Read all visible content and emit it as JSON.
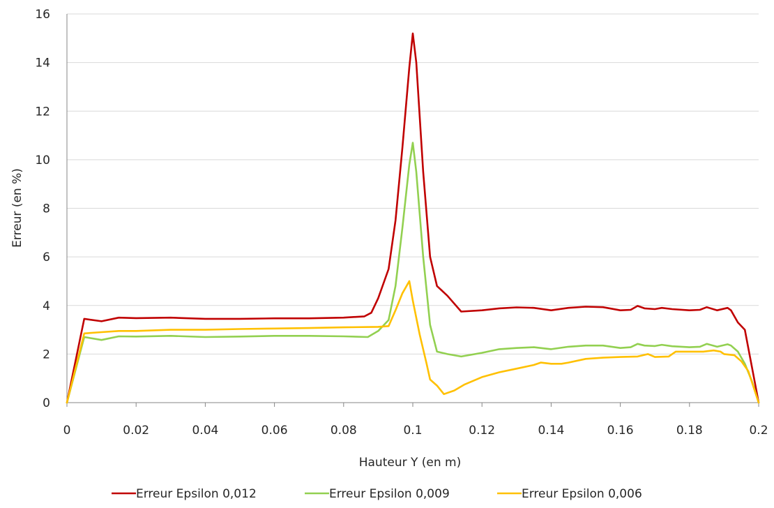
{
  "chart_data": {
    "type": "line",
    "title": "",
    "xlabel": "Hauteur Y (en m)",
    "ylabel": "Erreur (en %)",
    "xlim": [
      0,
      0.2
    ],
    "ylim": [
      0,
      16
    ],
    "grid": "horizontal",
    "legend_position": "bottom",
    "x_ticks": [
      0,
      0.02,
      0.04,
      0.06,
      0.08,
      0.1,
      0.12,
      0.14,
      0.16,
      0.18,
      0.2
    ],
    "x_tick_labels": [
      "0",
      "0.02",
      "0.04",
      "0.06",
      "0.08",
      "0.1",
      "0.12",
      "0.14",
      "0.16",
      "0.18",
      "0.2"
    ],
    "y_ticks": [
      0,
      2,
      4,
      6,
      8,
      10,
      12,
      14,
      16
    ],
    "y_tick_labels": [
      "0",
      "2",
      "4",
      "6",
      "8",
      "10",
      "12",
      "14",
      "16"
    ],
    "series": [
      {
        "name": "Erreur Epsilon 0,012",
        "color": "#c00000",
        "points": [
          [
            0,
            0
          ],
          [
            0.005,
            3.45
          ],
          [
            0.01,
            3.35
          ],
          [
            0.015,
            3.5
          ],
          [
            0.02,
            3.48
          ],
          [
            0.03,
            3.5
          ],
          [
            0.04,
            3.45
          ],
          [
            0.05,
            3.45
          ],
          [
            0.06,
            3.47
          ],
          [
            0.07,
            3.47
          ],
          [
            0.08,
            3.5
          ],
          [
            0.086,
            3.55
          ],
          [
            0.088,
            3.7
          ],
          [
            0.09,
            4.3
          ],
          [
            0.093,
            5.5
          ],
          [
            0.095,
            7.5
          ],
          [
            0.097,
            10.5
          ],
          [
            0.099,
            13.8
          ],
          [
            0.1,
            15.2
          ],
          [
            0.101,
            14.0
          ],
          [
            0.103,
            9.5
          ],
          [
            0.105,
            6.0
          ],
          [
            0.107,
            4.8
          ],
          [
            0.11,
            4.4
          ],
          [
            0.114,
            3.75
          ],
          [
            0.12,
            3.8
          ],
          [
            0.125,
            3.88
          ],
          [
            0.13,
            3.92
          ],
          [
            0.135,
            3.9
          ],
          [
            0.14,
            3.8
          ],
          [
            0.145,
            3.9
          ],
          [
            0.15,
            3.95
          ],
          [
            0.155,
            3.93
          ],
          [
            0.16,
            3.8
          ],
          [
            0.163,
            3.82
          ],
          [
            0.165,
            3.98
          ],
          [
            0.167,
            3.88
          ],
          [
            0.17,
            3.85
          ],
          [
            0.172,
            3.9
          ],
          [
            0.175,
            3.85
          ],
          [
            0.18,
            3.8
          ],
          [
            0.183,
            3.82
          ],
          [
            0.185,
            3.93
          ],
          [
            0.188,
            3.8
          ],
          [
            0.191,
            3.9
          ],
          [
            0.192,
            3.8
          ],
          [
            0.194,
            3.3
          ],
          [
            0.196,
            3.0
          ],
          [
            0.198,
            1.5
          ],
          [
            0.2,
            0
          ]
        ]
      },
      {
        "name": "Erreur Epsilon 0,009",
        "color": "#92d050",
        "points": [
          [
            0,
            0
          ],
          [
            0.005,
            2.7
          ],
          [
            0.01,
            2.58
          ],
          [
            0.015,
            2.73
          ],
          [
            0.02,
            2.72
          ],
          [
            0.03,
            2.75
          ],
          [
            0.04,
            2.7
          ],
          [
            0.05,
            2.72
          ],
          [
            0.06,
            2.75
          ],
          [
            0.07,
            2.75
          ],
          [
            0.08,
            2.73
          ],
          [
            0.087,
            2.7
          ],
          [
            0.09,
            2.95
          ],
          [
            0.093,
            3.4
          ],
          [
            0.095,
            4.8
          ],
          [
            0.097,
            7.2
          ],
          [
            0.099,
            9.8
          ],
          [
            0.1,
            10.7
          ],
          [
            0.101,
            9.5
          ],
          [
            0.103,
            6.0
          ],
          [
            0.105,
            3.2
          ],
          [
            0.107,
            2.1
          ],
          [
            0.11,
            2.0
          ],
          [
            0.114,
            1.9
          ],
          [
            0.12,
            2.05
          ],
          [
            0.125,
            2.2
          ],
          [
            0.13,
            2.25
          ],
          [
            0.135,
            2.28
          ],
          [
            0.14,
            2.2
          ],
          [
            0.145,
            2.3
          ],
          [
            0.15,
            2.35
          ],
          [
            0.155,
            2.35
          ],
          [
            0.16,
            2.25
          ],
          [
            0.163,
            2.28
          ],
          [
            0.165,
            2.42
          ],
          [
            0.167,
            2.35
          ],
          [
            0.17,
            2.33
          ],
          [
            0.172,
            2.38
          ],
          [
            0.175,
            2.32
          ],
          [
            0.18,
            2.28
          ],
          [
            0.183,
            2.3
          ],
          [
            0.185,
            2.42
          ],
          [
            0.188,
            2.3
          ],
          [
            0.191,
            2.4
          ],
          [
            0.192,
            2.35
          ],
          [
            0.194,
            2.1
          ],
          [
            0.196,
            1.6
          ],
          [
            0.198,
            0.9
          ],
          [
            0.2,
            0
          ]
        ]
      },
      {
        "name": "Erreur Epsilon 0,006",
        "color": "#ffc000",
        "points": [
          [
            0,
            0
          ],
          [
            0.005,
            2.85
          ],
          [
            0.01,
            2.9
          ],
          [
            0.015,
            2.95
          ],
          [
            0.02,
            2.95
          ],
          [
            0.03,
            3.0
          ],
          [
            0.04,
            3.0
          ],
          [
            0.05,
            3.03
          ],
          [
            0.06,
            3.05
          ],
          [
            0.07,
            3.07
          ],
          [
            0.08,
            3.1
          ],
          [
            0.09,
            3.12
          ],
          [
            0.093,
            3.15
          ],
          [
            0.095,
            3.8
          ],
          [
            0.097,
            4.5
          ],
          [
            0.099,
            5.0
          ],
          [
            0.1,
            4.2
          ],
          [
            0.102,
            2.8
          ],
          [
            0.104,
            1.6
          ],
          [
            0.105,
            0.95
          ],
          [
            0.107,
            0.7
          ],
          [
            0.109,
            0.35
          ],
          [
            0.112,
            0.5
          ],
          [
            0.115,
            0.75
          ],
          [
            0.12,
            1.05
          ],
          [
            0.125,
            1.25
          ],
          [
            0.13,
            1.4
          ],
          [
            0.135,
            1.55
          ],
          [
            0.137,
            1.65
          ],
          [
            0.14,
            1.6
          ],
          [
            0.143,
            1.6
          ],
          [
            0.145,
            1.65
          ],
          [
            0.15,
            1.8
          ],
          [
            0.155,
            1.85
          ],
          [
            0.16,
            1.88
          ],
          [
            0.165,
            1.9
          ],
          [
            0.168,
            2.0
          ],
          [
            0.17,
            1.88
          ],
          [
            0.174,
            1.9
          ],
          [
            0.176,
            2.1
          ],
          [
            0.18,
            2.1
          ],
          [
            0.184,
            2.1
          ],
          [
            0.187,
            2.15
          ],
          [
            0.189,
            2.1
          ],
          [
            0.19,
            2.0
          ],
          [
            0.193,
            1.95
          ],
          [
            0.195,
            1.7
          ],
          [
            0.197,
            1.3
          ],
          [
            0.2,
            0
          ]
        ]
      }
    ]
  }
}
